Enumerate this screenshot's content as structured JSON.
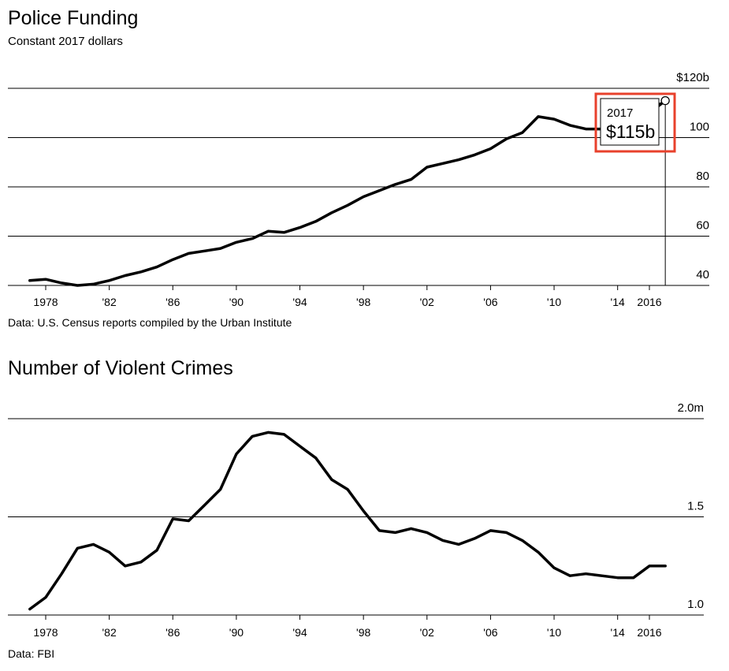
{
  "chart_data": [
    {
      "type": "line",
      "title": "Police Funding",
      "subtitle": "Constant 2017 dollars",
      "source": "Data: U.S. Census reports compiled by the Urban Institute",
      "xlim": [
        1977,
        2018
      ],
      "ylim": [
        40,
        120
      ],
      "x_ticks": [
        1978,
        1982,
        1986,
        1990,
        1994,
        1998,
        2002,
        2006,
        2010,
        2014,
        2016
      ],
      "x_tick_labels": [
        "1978",
        "'82",
        "'86",
        "'90",
        "'94",
        "'98",
        "'02",
        "'06",
        "'10",
        "'14",
        "2016"
      ],
      "y_ticks": [
        40,
        60,
        80,
        100,
        120
      ],
      "y_tick_labels": [
        "40",
        "60",
        "80",
        "100",
        "$120b"
      ],
      "grid": true,
      "x": [
        1977,
        1978,
        1979,
        1980,
        1981,
        1982,
        1983,
        1984,
        1985,
        1986,
        1987,
        1988,
        1989,
        1990,
        1991,
        1992,
        1993,
        1994,
        1995,
        1996,
        1997,
        1998,
        1999,
        2000,
        2001,
        2002,
        2003,
        2004,
        2005,
        2006,
        2007,
        2008,
        2009,
        2010,
        2011,
        2012,
        2013,
        2014,
        2015,
        2016,
        2017
      ],
      "values": [
        42,
        42.5,
        41,
        40,
        40.5,
        42,
        44,
        45.5,
        47.5,
        50.5,
        53,
        54,
        55,
        57.5,
        59,
        62,
        61.5,
        63.5,
        66,
        69.5,
        72.5,
        76,
        78.5,
        81,
        83,
        88,
        89.5,
        91,
        93,
        95.5,
        99.5,
        102,
        108.5,
        107.5,
        105,
        103.5,
        103.5,
        104.5,
        106,
        110,
        115
      ],
      "callout": {
        "label": "2017",
        "value": "$115b",
        "x": 2017,
        "y": 115
      }
    },
    {
      "type": "line",
      "title": "Number of Violent Crimes",
      "source": "Data: FBI",
      "xlim": [
        1977,
        2018
      ],
      "ylim": [
        1.0,
        2.0
      ],
      "x_ticks": [
        1978,
        1982,
        1986,
        1990,
        1994,
        1998,
        2002,
        2006,
        2010,
        2014,
        2016
      ],
      "x_tick_labels": [
        "1978",
        "'82",
        "'86",
        "'90",
        "'94",
        "'98",
        "'02",
        "'06",
        "'10",
        "'14",
        "2016"
      ],
      "y_ticks": [
        1.0,
        1.5,
        2.0
      ],
      "y_tick_labels": [
        "1.0",
        "1.5",
        "2.0m"
      ],
      "grid": true,
      "x": [
        1977,
        1978,
        1979,
        1980,
        1981,
        1982,
        1983,
        1984,
        1985,
        1986,
        1987,
        1988,
        1989,
        1990,
        1991,
        1992,
        1993,
        1994,
        1995,
        1996,
        1997,
        1998,
        1999,
        2000,
        2001,
        2002,
        2003,
        2004,
        2005,
        2006,
        2007,
        2008,
        2009,
        2010,
        2011,
        2012,
        2013,
        2014,
        2015,
        2016,
        2017
      ],
      "values": [
        1.03,
        1.09,
        1.21,
        1.34,
        1.36,
        1.32,
        1.25,
        1.27,
        1.33,
        1.49,
        1.48,
        1.56,
        1.64,
        1.82,
        1.91,
        1.93,
        1.92,
        1.86,
        1.8,
        1.69,
        1.64,
        1.53,
        1.43,
        1.42,
        1.44,
        1.42,
        1.38,
        1.36,
        1.39,
        1.43,
        1.42,
        1.38,
        1.32,
        1.24,
        1.2,
        1.21,
        1.2,
        1.19,
        1.19,
        1.25,
        1.25
      ]
    }
  ]
}
